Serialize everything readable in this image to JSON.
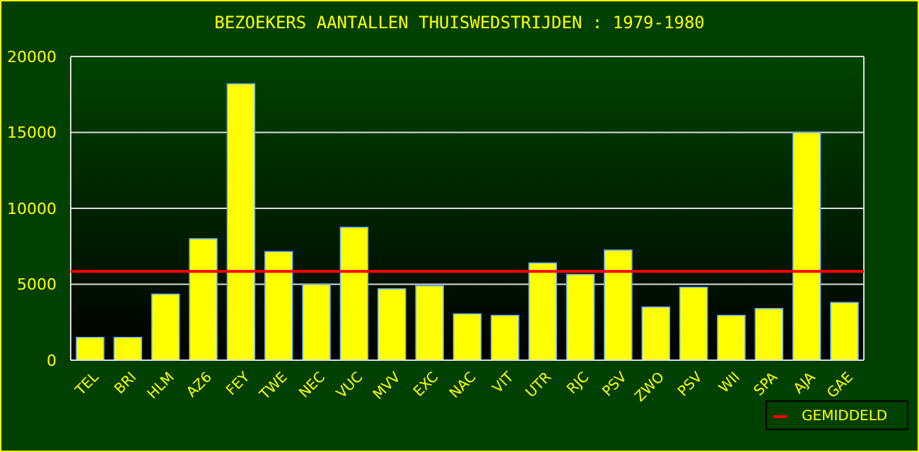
{
  "chart_data": {
    "type": "bar",
    "title": "BEZOEKERS AANTALLEN THUISWEDSTRIJDEN : 1979-1980",
    "categories": [
      "TEL",
      "BRI",
      "HLM",
      "AZ6",
      "FEY",
      "TWE",
      "NEC",
      "VUC",
      "MVV",
      "EXC",
      "NAC",
      "VIT",
      "UTR",
      "RJC",
      "PSV",
      "ZWO",
      "PSV",
      "WII",
      "SPA",
      "AJA",
      "GAE"
    ],
    "values": [
      1500,
      1500,
      4350,
      8000,
      18200,
      7150,
      5000,
      8750,
      4700,
      4900,
      3050,
      2950,
      6400,
      5650,
      7250,
      3500,
      4800,
      2950,
      3400,
      15000,
      3800
    ],
    "color": "#ffff00",
    "ylim": [
      0,
      20000
    ],
    "yticks": [
      0,
      5000,
      10000,
      15000,
      20000
    ],
    "grid": "y",
    "ref_lines": [
      {
        "axis": "y",
        "value": 5850,
        "label": "GEMIDDELD",
        "color": "#ff0000"
      }
    ],
    "legend": "bottom right"
  }
}
